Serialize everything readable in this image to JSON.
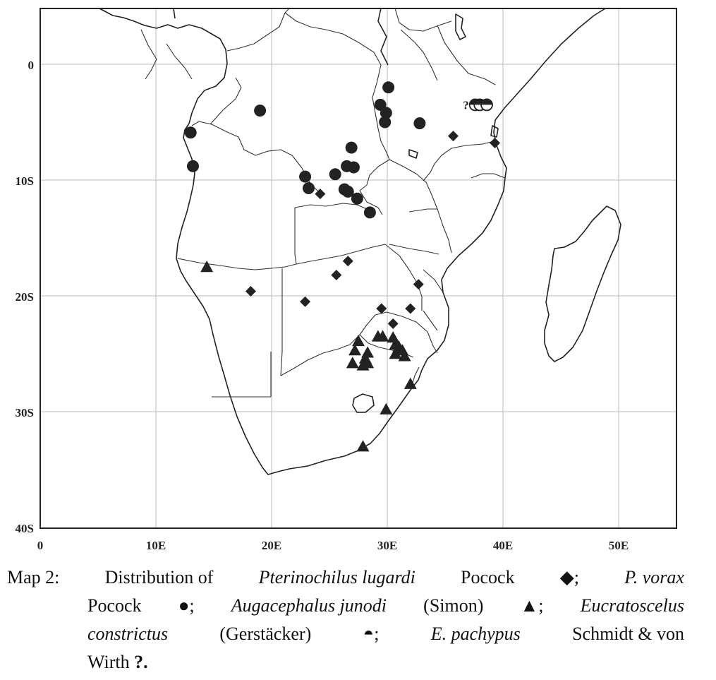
{
  "x_ticks": [
    "0",
    "10E",
    "20E",
    "30E",
    "40E",
    "50E"
  ],
  "y_ticks": [
    "0",
    "10S",
    "20S",
    "30S",
    "40S"
  ],
  "caption": {
    "label": "Map 2:",
    "t1": "Distribution of",
    "s1": "Pterinochilus lugardi",
    "a1": "Pocock",
    "sym1": "◆;",
    "s2": "P. vorax",
    "a2": "Pocock",
    "sym2": "●;",
    "s3": "Augacephalus junodi",
    "a3": "(Simon)",
    "sym3": "▲;",
    "s4": "Eucratoscelus",
    "s4b": "constrictus",
    "a4": "(Gerstäcker)",
    "sym4": "◓;",
    "s5": "E. pachypus",
    "a5": "Schmidt & von",
    "a5b": "Wirth",
    "sym5": "?."
  },
  "colors": {
    "marker": "#222222",
    "grid": "#bbbbbb",
    "border": "#222222"
  },
  "legend_symbols": {
    "Pterinochilus lugardi": "diamond",
    "P. vorax": "circle",
    "Augacephalus junodi": "triangle",
    "Eucratoscelus constrictus": "half-filled circle",
    "E. pachypus": "question mark"
  },
  "map_data": {
    "lon_range": [
      0,
      55
    ],
    "lat_range": [
      3,
      -40
    ],
    "grid": true,
    "series": [
      {
        "species": "Pterinochilus lugardi",
        "symbol": "diamond",
        "points": [
          [
            35.7,
            -6.2
          ],
          [
            39.3,
            -6.8
          ],
          [
            24.2,
            -11.2
          ],
          [
            26.6,
            -17.0
          ],
          [
            25.6,
            -18.2
          ],
          [
            18.2,
            -19.6
          ],
          [
            22.9,
            -20.5
          ],
          [
            32.7,
            -19.0
          ],
          [
            29.5,
            -21.1
          ],
          [
            32.0,
            -21.1
          ],
          [
            30.5,
            -22.4
          ]
        ]
      },
      {
        "species": "P. vorax",
        "symbol": "circle",
        "points": [
          [
            19.0,
            -4.0
          ],
          [
            13.0,
            -5.9
          ],
          [
            13.2,
            -8.8
          ],
          [
            30.1,
            -2.0
          ],
          [
            29.4,
            -3.5
          ],
          [
            29.9,
            -4.2
          ],
          [
            29.8,
            -5.0
          ],
          [
            32.8,
            -5.1
          ],
          [
            26.9,
            -7.2
          ],
          [
            26.5,
            -8.8
          ],
          [
            27.1,
            -8.9
          ],
          [
            22.9,
            -9.7
          ],
          [
            25.5,
            -9.5
          ],
          [
            23.2,
            -10.7
          ],
          [
            26.3,
            -10.8
          ],
          [
            26.6,
            -11.0
          ],
          [
            27.4,
            -11.6
          ],
          [
            28.5,
            -12.8
          ]
        ]
      },
      {
        "species": "Augacephalus junodi",
        "symbol": "triangle",
        "points": [
          [
            14.4,
            -17.5
          ],
          [
            27.5,
            -23.9
          ],
          [
            29.2,
            -23.5
          ],
          [
            29.6,
            -23.5
          ],
          [
            30.5,
            -23.6
          ],
          [
            30.7,
            -24.2
          ],
          [
            31.0,
            -24.4
          ],
          [
            31.3,
            -24.7
          ],
          [
            30.7,
            -25.0
          ],
          [
            31.5,
            -25.2
          ],
          [
            27.2,
            -24.7
          ],
          [
            28.3,
            -24.9
          ],
          [
            28.1,
            -25.4
          ],
          [
            27.0,
            -25.8
          ],
          [
            27.9,
            -26.0
          ],
          [
            28.3,
            -25.8
          ],
          [
            32.0,
            -27.6
          ],
          [
            29.9,
            -29.8
          ],
          [
            27.9,
            -33.0
          ]
        ]
      },
      {
        "species": "Eucratoscelus constrictus",
        "symbol": "half-circle",
        "points": [
          [
            37.6,
            -3.5
          ],
          [
            38.0,
            -3.5
          ],
          [
            38.6,
            -3.5
          ]
        ]
      },
      {
        "species": "E. pachypus",
        "symbol": "question",
        "points": [
          [
            36.8,
            -3.5
          ]
        ]
      }
    ]
  }
}
